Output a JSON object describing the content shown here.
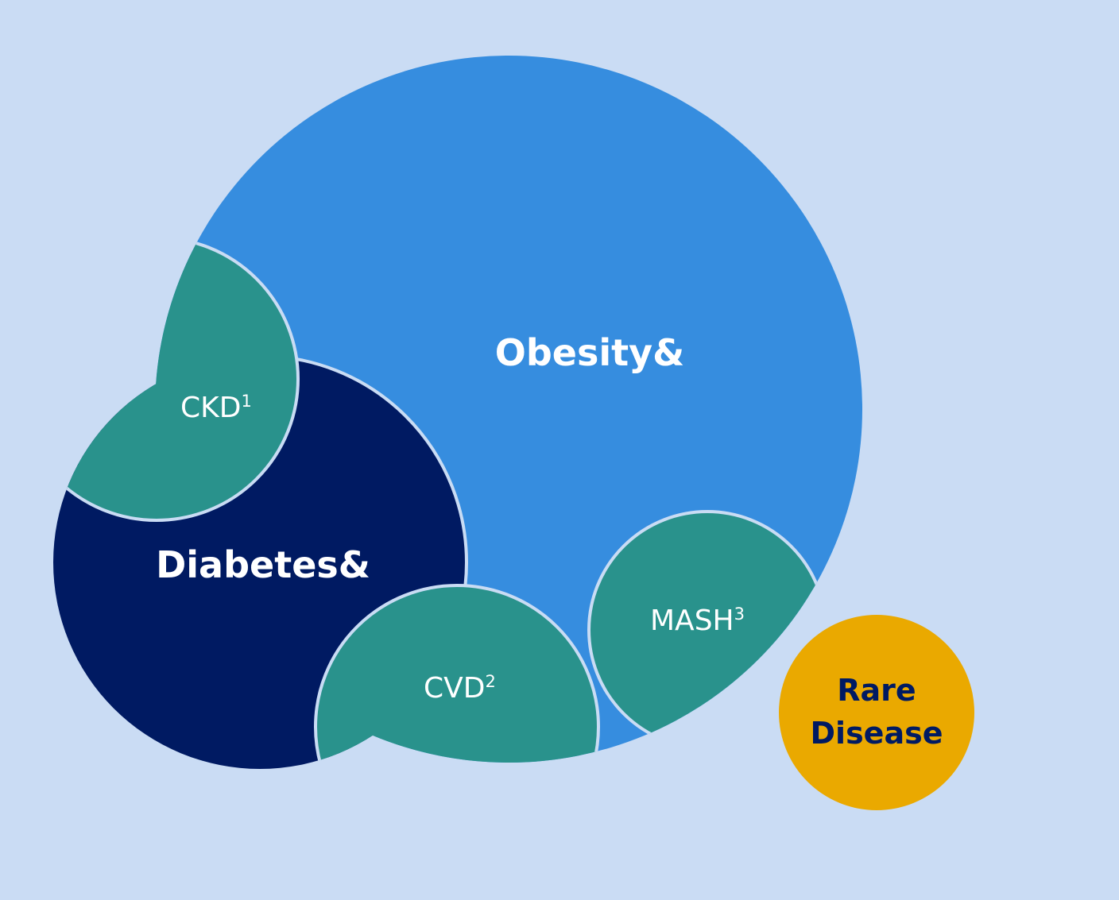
{
  "colors": {
    "background": "#cadcf4",
    "obesity": "#368ddf",
    "diabetes": "#001a62",
    "comorbidity": "#29928c",
    "rare_disease": "#eaa900",
    "rare_disease_text": "#001a62",
    "outline": "#c9dcf4"
  },
  "labels": {
    "obesity": "Obesity&",
    "diabetes": "Diabetes&",
    "ckd": "CKD",
    "ckd_sup": "1",
    "cvd": "CVD",
    "cvd_sup": "2",
    "mash": "MASH",
    "mash_sup": "3",
    "rare_line1": "Rare",
    "rare_line2": "Disease"
  }
}
